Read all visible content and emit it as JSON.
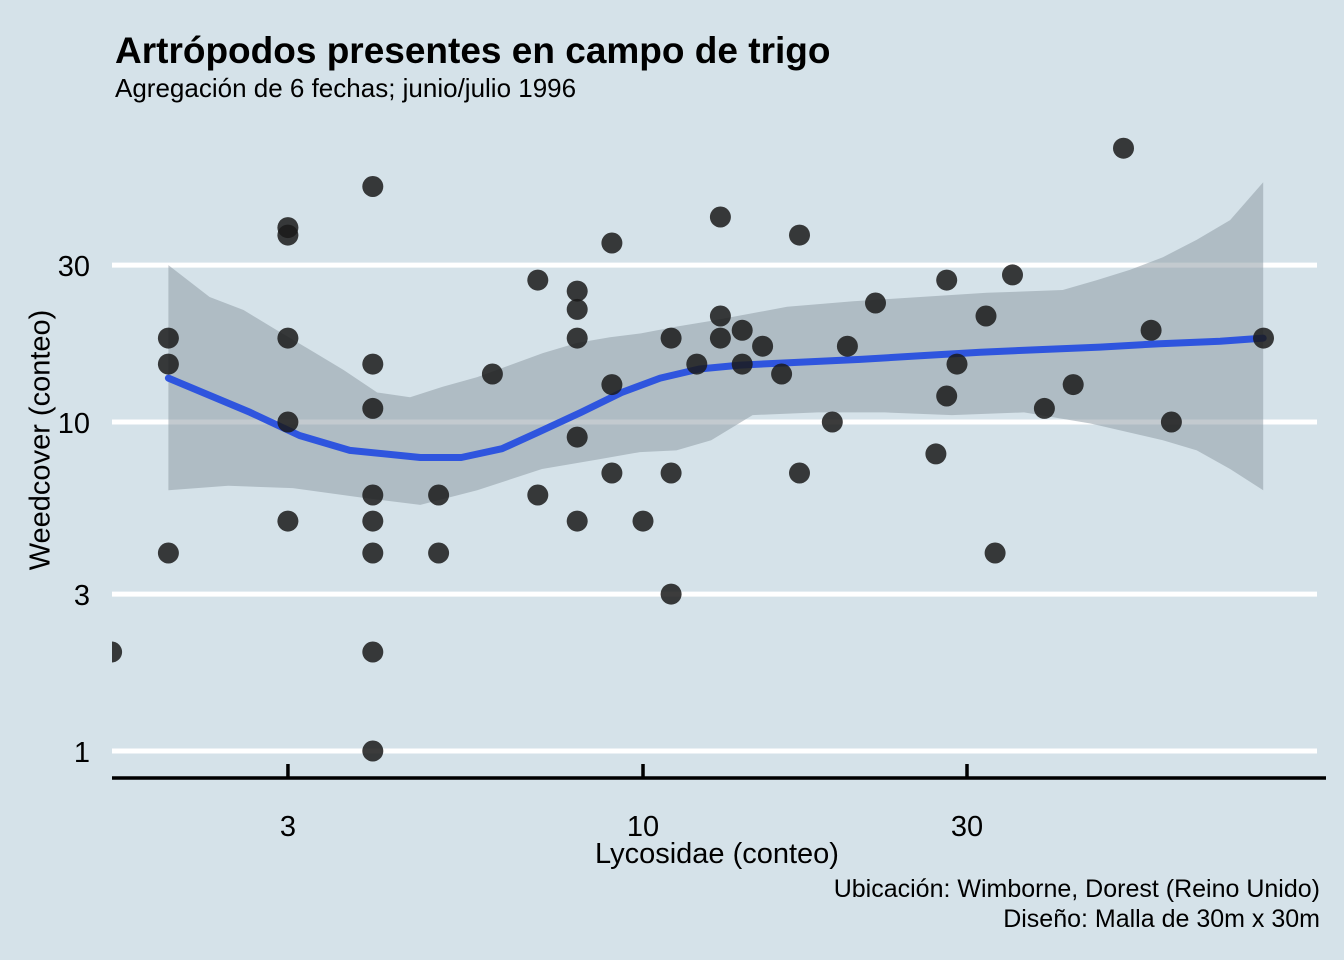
{
  "title": "Artrópodos presentes en campo de trigo",
  "subtitle": "Agregación de 6 fechas; junio/julio 1996",
  "caption": {
    "line1": "Ubicación: Wimborne, Dorest (Reino Unido)",
    "line2": "Diseño: Malla de 30m x 30m"
  },
  "colors": {
    "background": "#D5E2E9",
    "gridline": "#FFFFFF",
    "axis_line": "#000000",
    "text": "#000000",
    "point_fill": "#1A1A1A",
    "point_opacity": 0.85,
    "smooth_line": "#2F55DE",
    "ribbon_fill": "#8C99A3",
    "ribbon_opacity": 0.52
  },
  "chart_data": {
    "type": "scatter",
    "title": "Artrópodos presentes en campo de trigo",
    "subtitle": "Agregación de 6 fechas; junio/julio 1996",
    "xlabel": "Lycosidae (conteo)",
    "ylabel": "Weedcover (conteo)",
    "x_scale": "log10",
    "y_scale": "log10",
    "xlim": [
      1.652,
      98.3
    ],
    "ylim": [
      0.828,
      78.3
    ],
    "x_ticks": [
      3,
      10,
      30
    ],
    "y_ticks": [
      1,
      3,
      10,
      30
    ],
    "grid": "horizontal white gridlines only",
    "legend": "none",
    "smooth": "loess with 95% confidence ribbon",
    "points": [
      [
        1.65,
        2
      ],
      [
        2,
        18
      ],
      [
        2,
        15
      ],
      [
        2,
        4
      ],
      [
        3,
        39
      ],
      [
        3,
        37
      ],
      [
        3,
        18
      ],
      [
        3,
        10
      ],
      [
        3,
        5
      ],
      [
        4,
        52
      ],
      [
        4,
        15
      ],
      [
        4,
        11
      ],
      [
        4,
        6
      ],
      [
        4,
        5
      ],
      [
        4,
        4
      ],
      [
        4,
        2
      ],
      [
        4,
        1
      ],
      [
        5,
        6
      ],
      [
        5,
        4
      ],
      [
        6,
        14
      ],
      [
        7,
        27
      ],
      [
        7,
        6
      ],
      [
        8,
        25
      ],
      [
        8,
        22
      ],
      [
        8,
        18
      ],
      [
        8,
        9
      ],
      [
        8,
        5
      ],
      [
        9,
        35
      ],
      [
        9,
        13
      ],
      [
        9,
        7
      ],
      [
        10,
        5
      ],
      [
        11,
        18
      ],
      [
        11,
        7
      ],
      [
        11,
        3
      ],
      [
        12,
        15
      ],
      [
        13,
        42
      ],
      [
        13,
        21
      ],
      [
        13,
        18
      ],
      [
        14,
        19
      ],
      [
        14,
        15
      ],
      [
        15,
        17
      ],
      [
        16,
        14
      ],
      [
        17,
        37
      ],
      [
        17,
        7
      ],
      [
        19,
        10
      ],
      [
        20,
        17
      ],
      [
        22,
        23
      ],
      [
        27,
        8
      ],
      [
        28,
        27
      ],
      [
        28,
        12
      ],
      [
        29,
        15
      ],
      [
        32,
        21
      ],
      [
        33,
        4
      ],
      [
        35,
        28
      ],
      [
        39,
        11
      ],
      [
        43,
        13
      ],
      [
        51,
        68
      ],
      [
        56,
        19
      ],
      [
        60,
        10
      ],
      [
        82,
        18
      ]
    ],
    "smooth_line": [
      [
        2.0,
        13.6
      ],
      [
        2.64,
        10.7
      ],
      [
        3.12,
        9.1
      ],
      [
        3.7,
        8.2
      ],
      [
        4.7,
        7.8
      ],
      [
        5.4,
        7.8
      ],
      [
        6.2,
        8.3
      ],
      [
        7.0,
        9.3
      ],
      [
        8.1,
        10.7
      ],
      [
        9.3,
        12.3
      ],
      [
        10.6,
        13.6
      ],
      [
        12.1,
        14.5
      ],
      [
        13.9,
        14.9
      ],
      [
        17.0,
        15.2
      ],
      [
        20.9,
        15.5
      ],
      [
        25.6,
        15.9
      ],
      [
        31.4,
        16.3
      ],
      [
        38.4,
        16.6
      ],
      [
        47.1,
        16.9
      ],
      [
        57.7,
        17.3
      ],
      [
        70.8,
        17.6
      ],
      [
        81.9,
        18.0
      ]
    ],
    "ci_upper": [
      [
        2.0,
        30.0
      ],
      [
        2.3,
        24.0
      ],
      [
        2.58,
        21.9
      ],
      [
        2.89,
        19.0
      ],
      [
        3.23,
        16.6
      ],
      [
        3.62,
        14.4
      ],
      [
        4.06,
        12.3
      ],
      [
        4.54,
        11.9
      ],
      [
        5.07,
        12.8
      ],
      [
        5.7,
        13.7
      ],
      [
        6.37,
        14.9
      ],
      [
        7.12,
        16.2
      ],
      [
        8.0,
        17.4
      ],
      [
        8.94,
        18.1
      ],
      [
        9.93,
        18.6
      ],
      [
        11.2,
        19.5
      ],
      [
        12.6,
        20.3
      ],
      [
        16.3,
        22.4
      ],
      [
        20.4,
        23.3
      ],
      [
        25.6,
        24.0
      ],
      [
        32.1,
        24.7
      ],
      [
        41.5,
        25.2
      ],
      [
        46.6,
        27.0
      ],
      [
        52.1,
        29.0
      ],
      [
        58.3,
        31.7
      ],
      [
        65.4,
        35.8
      ],
      [
        73.2,
        41.1
      ],
      [
        81.9,
        53.6
      ]
    ],
    "ci_lower": [
      [
        2.0,
        6.2
      ],
      [
        2.45,
        6.4
      ],
      [
        3.05,
        6.3
      ],
      [
        3.83,
        5.9
      ],
      [
        4.7,
        5.6
      ],
      [
        5.7,
        6.2
      ],
      [
        7.1,
        7.2
      ],
      [
        8.6,
        7.7
      ],
      [
        9.9,
        8.1
      ],
      [
        11.2,
        8.2
      ],
      [
        12.6,
        8.8
      ],
      [
        14.5,
        10.5
      ],
      [
        18.1,
        10.7
      ],
      [
        22.7,
        10.7
      ],
      [
        28.5,
        10.5
      ],
      [
        36.4,
        10.7
      ],
      [
        45.6,
        9.9
      ],
      [
        58.3,
        8.8
      ],
      [
        65.4,
        8.2
      ],
      [
        73.2,
        7.2
      ],
      [
        81.9,
        6.2
      ]
    ]
  }
}
